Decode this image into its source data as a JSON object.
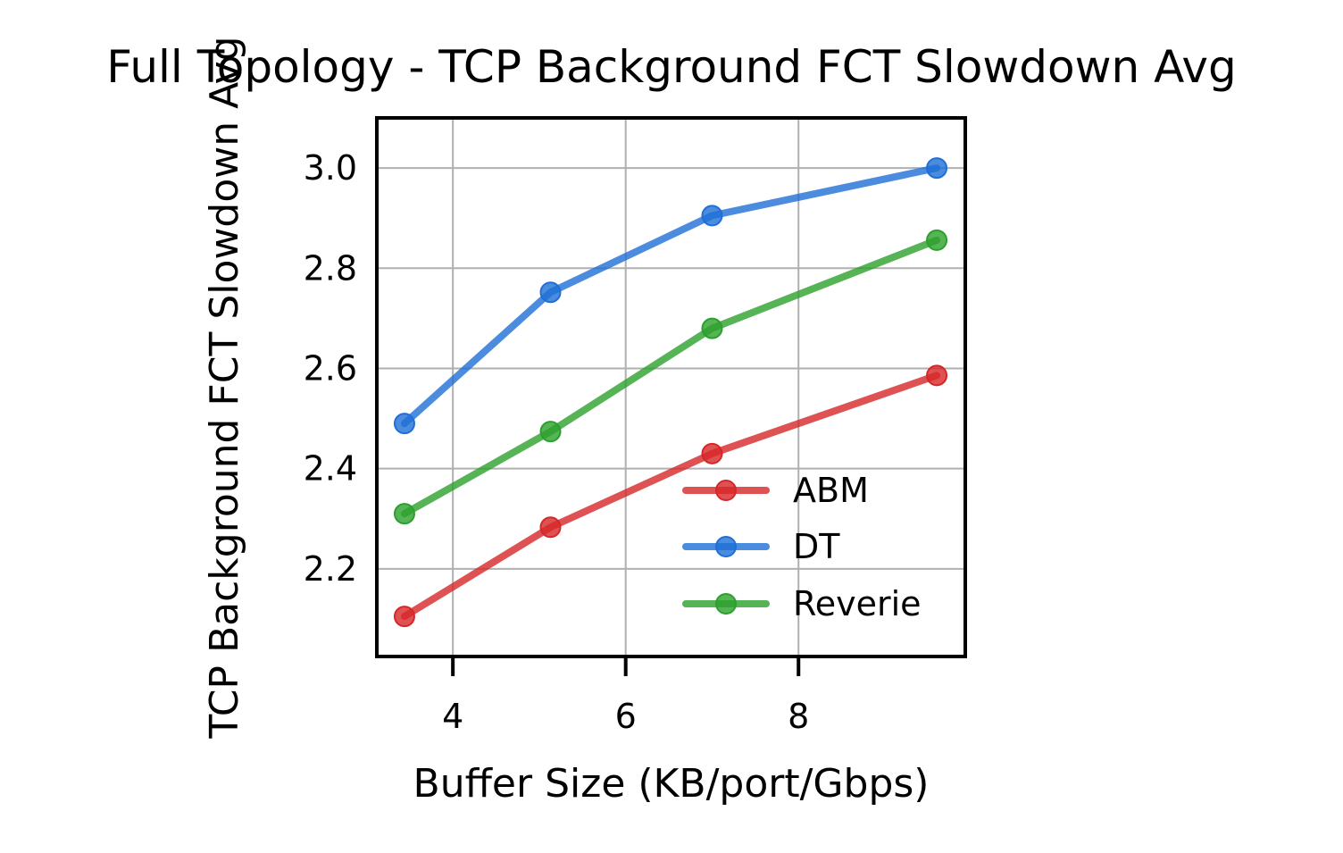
{
  "chart_data": {
    "type": "line",
    "title": "Full Topology - TCP Background FCT Slowdown Avg",
    "xlabel": "Buffer Size (KB/port/Gbps)",
    "ylabel": "TCP Background FCT Slowdown Avg",
    "xlim": [
      3.12,
      9.93
    ],
    "ylim": [
      2.025,
      3.1
    ],
    "xticks": [
      4,
      6,
      8
    ],
    "yticks": [
      2.2,
      2.4,
      2.6,
      2.8,
      3.0
    ],
    "xtick_labels": [
      "4",
      "6",
      "8"
    ],
    "ytick_labels": [
      "2.2",
      "2.4",
      "2.6",
      "2.8",
      "3.0"
    ],
    "grid": true,
    "legend": "lower-right",
    "series": [
      {
        "name": "ABM",
        "color": "#d62728",
        "x": [
          3.44,
          5.13,
          7.0,
          9.6
        ],
        "y": [
          2.105,
          2.283,
          2.43,
          2.586
        ]
      },
      {
        "name": "DT",
        "color": "#1f6fd6",
        "x": [
          3.44,
          5.13,
          7.0,
          9.6
        ],
        "y": [
          2.49,
          2.752,
          2.905,
          3.0
        ]
      },
      {
        "name": "Reverie",
        "color": "#2ca02c",
        "x": [
          3.44,
          5.13,
          7.0,
          9.6
        ],
        "y": [
          2.31,
          2.474,
          2.68,
          2.856
        ]
      }
    ]
  }
}
